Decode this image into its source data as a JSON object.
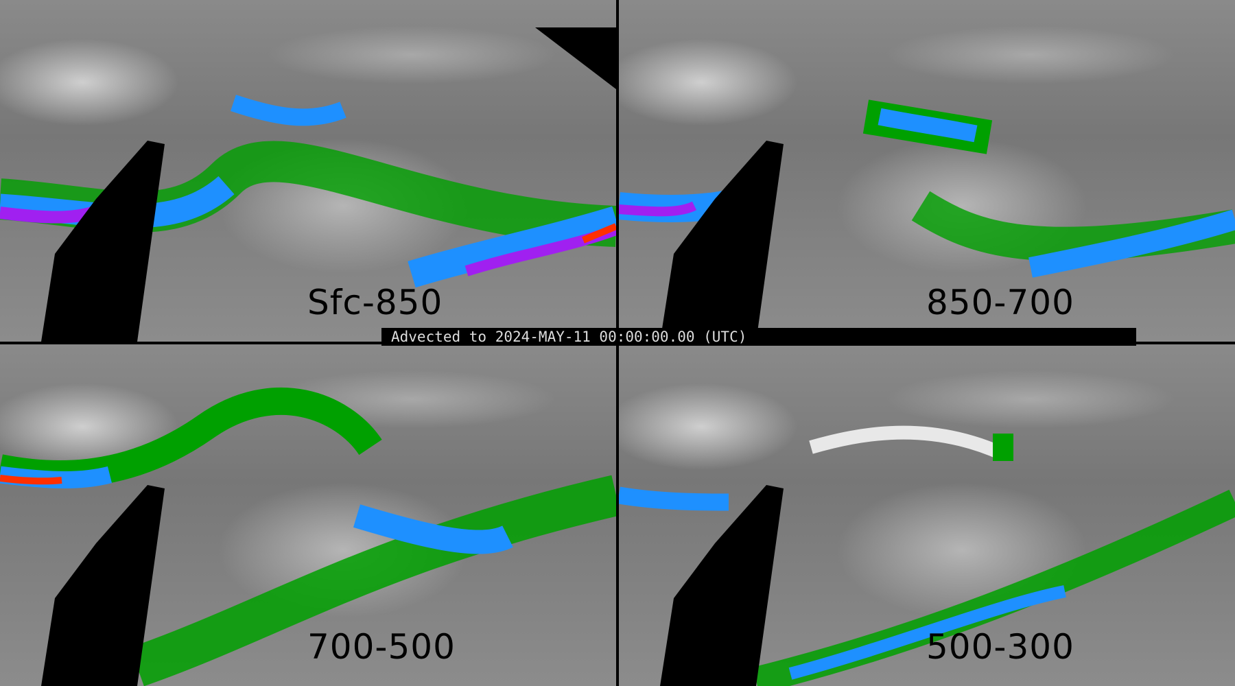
{
  "banner": "Advected to 2024-MAY-11 00:00:00.00 (UTC)",
  "panels": [
    {
      "label": "Sfc-850"
    },
    {
      "label": "850-700"
    },
    {
      "label": "700-500"
    },
    {
      "label": "500-300"
    }
  ],
  "colors": {
    "low": "#00a000",
    "mid": "#1e90ff",
    "high": "#a020f0",
    "max": "#ff3000",
    "background": "#808080",
    "mask": "#000000"
  }
}
